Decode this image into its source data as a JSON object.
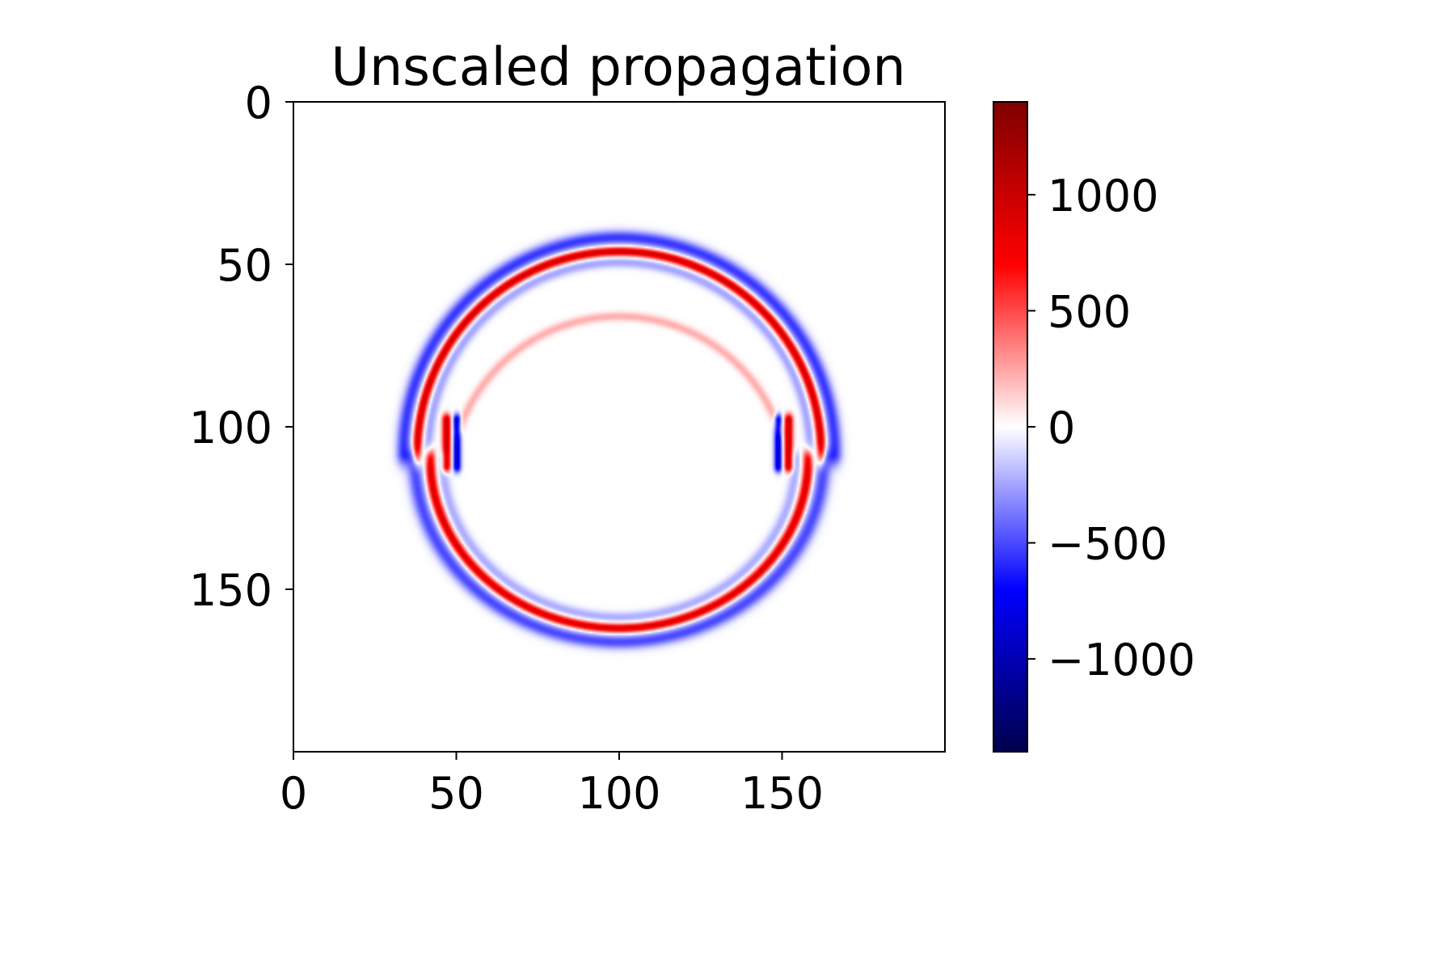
{
  "chart_data": {
    "type": "heatmap",
    "title": "Unscaled propagation",
    "xlabel": "",
    "ylabel": "",
    "grid": false,
    "image_shape": [
      200,
      200
    ],
    "xlim": [
      0,
      200
    ],
    "ylim": [
      200,
      0
    ],
    "y_axis_inverted": true,
    "x_ticks": [
      0,
      50,
      100,
      150
    ],
    "x_tick_labels": [
      "0",
      "50",
      "100",
      "150"
    ],
    "y_ticks": [
      0,
      50,
      100,
      150
    ],
    "y_tick_labels": [
      "0",
      "50",
      "100",
      "150"
    ],
    "colormap": "seismic",
    "colormap_stops": [
      "#00004d",
      "#0000ff",
      "#ffffff",
      "#ff0000",
      "#800000"
    ],
    "colorbar": {
      "vmin": -1400,
      "vmax": 1400,
      "ticks": [
        -1000,
        -500,
        0,
        500,
        1000
      ],
      "tick_labels": [
        "−1000",
        "−500",
        "0",
        "500",
        "1000"
      ]
    },
    "features": [
      {
        "name": "upper wavefront",
        "shape": "arc",
        "center": [
          100,
          108
        ],
        "radius": 62,
        "angle_range_deg": [
          -180,
          0
        ],
        "amplitude": 950,
        "negative_shell_amplitude": -550
      },
      {
        "name": "lower wavefront",
        "shape": "ellipse-arc",
        "center": [
          100,
          110
        ],
        "radius_x": 58,
        "radius_y": 52,
        "angle_range_deg": [
          0,
          180
        ],
        "amplitude": 900,
        "negative_shell_amplitude": -500
      },
      {
        "name": "inner reflected wave",
        "shape": "arc",
        "center": [
          100,
          118
        ],
        "radius": 52,
        "angle_range_deg": [
          -160,
          -20
        ],
        "amplitude": 220
      },
      {
        "name": "left edge",
        "shape": "vertical-segment",
        "x": 47,
        "y_range": [
          98,
          112
        ],
        "amplitude": 1000
      },
      {
        "name": "right edge",
        "shape": "vertical-segment",
        "x": 152,
        "y_range": [
          98,
          112
        ],
        "amplitude": 1000
      }
    ]
  }
}
